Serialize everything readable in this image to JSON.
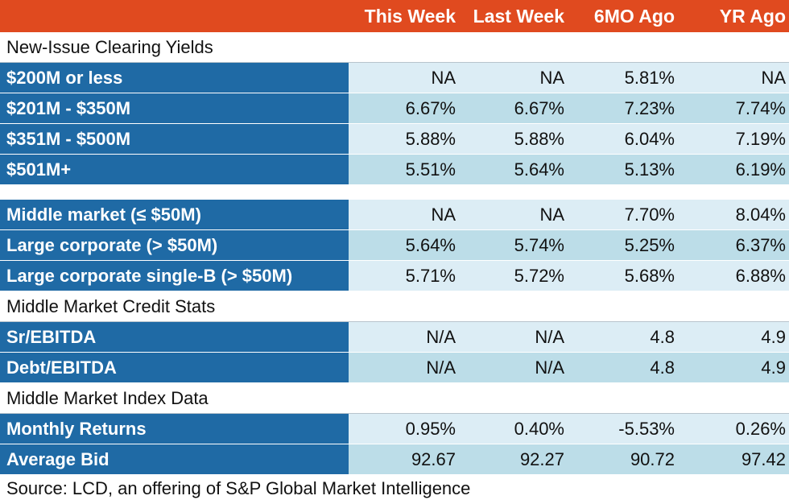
{
  "header": {
    "columns": [
      "This Week",
      "Last Week",
      "6MO Ago",
      "YR Ago"
    ]
  },
  "sections": {
    "clearing": {
      "title": "New-Issue Clearing Yields",
      "rows": [
        {
          "label": "$200M or less",
          "values": [
            "NA",
            "NA",
            "5.81%",
            "NA"
          ]
        },
        {
          "label": "$201M - $350M",
          "values": [
            "6.67%",
            "6.67%",
            "7.23%",
            "7.74%"
          ]
        },
        {
          "label": "$351M - $500M",
          "values": [
            "5.88%",
            "5.88%",
            "6.04%",
            "7.19%"
          ]
        },
        {
          "label": "$501M+",
          "values": [
            "5.51%",
            "5.64%",
            "5.13%",
            "6.19%"
          ]
        }
      ]
    },
    "segments": {
      "rows": [
        {
          "label": "Middle market (≤ $50M)",
          "values": [
            "NA",
            "NA",
            "7.70%",
            "8.04%"
          ]
        },
        {
          "label": "Large corporate (> $50M)",
          "values": [
            "5.64%",
            "5.74%",
            "5.25%",
            "6.37%"
          ]
        },
        {
          "label": "Large corporate single-B (> $50M)",
          "values": [
            "5.71%",
            "5.72%",
            "5.68%",
            "6.88%"
          ]
        }
      ]
    },
    "credit": {
      "title": "Middle Market Credit Stats",
      "rows": [
        {
          "label": "Sr/EBITDA",
          "values": [
            "N/A",
            "N/A",
            "4.8",
            "4.9"
          ]
        },
        {
          "label": "Debt/EBITDA",
          "values": [
            "N/A",
            "N/A",
            "4.8",
            "4.9"
          ]
        }
      ]
    },
    "index": {
      "title": "Middle Market Index Data",
      "rows": [
        {
          "label": "Monthly Returns",
          "values": [
            "0.95%",
            "0.40%",
            "-5.53%",
            "0.26%"
          ]
        },
        {
          "label": "Average Bid",
          "values": [
            "92.67",
            "92.27",
            "90.72",
            "97.42"
          ]
        }
      ]
    }
  },
  "source": "Source: LCD, an offering of S&P Global Market Intelligence",
  "colors": {
    "header": "#e04a1f",
    "label": "#1f6aa5",
    "row_light": "#dcedf5",
    "row_mid": "#bcdde8"
  }
}
